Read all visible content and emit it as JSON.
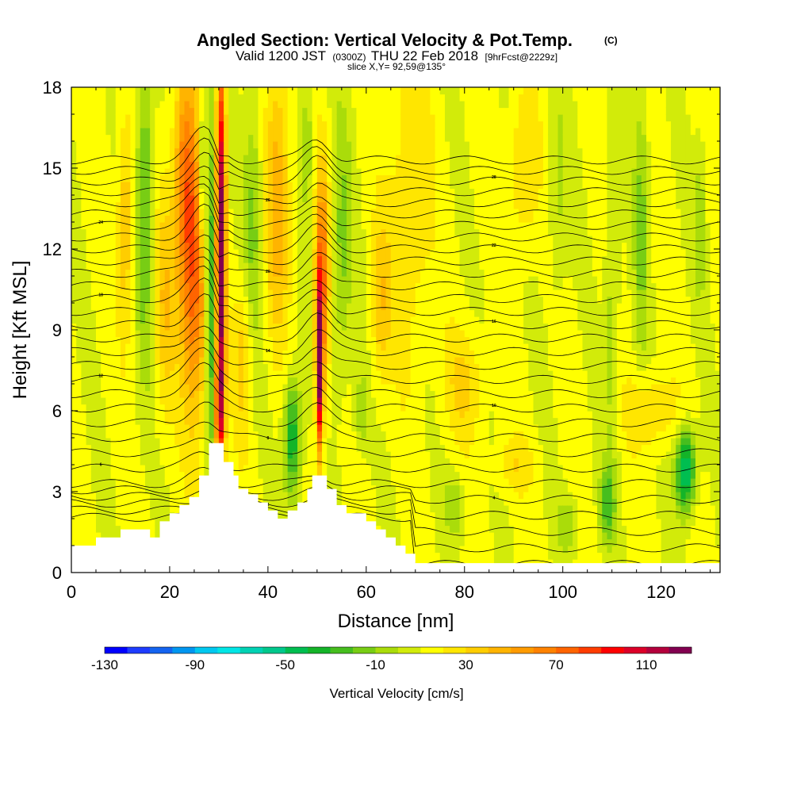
{
  "chart_data": {
    "type": "heatmap",
    "title": "Angled Section: Vertical Velocity & Pot.Temp.",
    "title_mark": "(C)",
    "subtitle": {
      "valid": "Valid 1200 JST",
      "zulu": "(0300Z)",
      "date": "THU 22 Feb 2018",
      "fcst": "[9hrFcst@2229z]"
    },
    "slice_text": "slice X,Y= 92,59@135°",
    "xlabel": "Distance [nm]",
    "ylabel": "Height [Kft MSL]",
    "xlim": [
      0,
      132
    ],
    "ylim": [
      0,
      18
    ],
    "x_ticks": [
      0,
      20,
      40,
      60,
      80,
      100,
      120
    ],
    "y_ticks": [
      0,
      3,
      6,
      9,
      12,
      15,
      18
    ],
    "grid": false,
    "colorbar": {
      "label": "Vertical Velocity [cm/s]",
      "placement": "bottom",
      "tick_labels": [
        "-130",
        "-90",
        "-50",
        "-10",
        "30",
        "70",
        "110"
      ],
      "min": -130,
      "max": 120,
      "step": 10,
      "colors": [
        "#0000ff",
        "#1e3cff",
        "#1464f0",
        "#0096f0",
        "#00c8f0",
        "#00e6e6",
        "#00d2b4",
        "#00c88c",
        "#00be50",
        "#14b428",
        "#46be1e",
        "#78cd14",
        "#aadc0a",
        "#d2eb0a",
        "#ffff00",
        "#ffe600",
        "#ffcd00",
        "#ffb400",
        "#ff9b00",
        "#ff8200",
        "#ff6400",
        "#ff3c00",
        "#ff0000",
        "#dc0028",
        "#b4003c",
        "#820050"
      ]
    },
    "terrain": [
      [
        0,
        1
      ],
      [
        5,
        1
      ],
      [
        5,
        1.3
      ],
      [
        10,
        1.3
      ],
      [
        10,
        1.6
      ],
      [
        16,
        1.6
      ],
      [
        16,
        1.3
      ],
      [
        18,
        1.3
      ],
      [
        18,
        1.9
      ],
      [
        20,
        1.9
      ],
      [
        20,
        2.2
      ],
      [
        22,
        2.2
      ],
      [
        22,
        2.5
      ],
      [
        24,
        2.5
      ],
      [
        24,
        2.8
      ],
      [
        26,
        2.8
      ],
      [
        26,
        3.6
      ],
      [
        28,
        3.6
      ],
      [
        28,
        4.8
      ],
      [
        31,
        4.8
      ],
      [
        31,
        4.1
      ],
      [
        33,
        4.1
      ],
      [
        33,
        3.6
      ],
      [
        34,
        3.6
      ],
      [
        34,
        3.1
      ],
      [
        36,
        3.1
      ],
      [
        36,
        2.9
      ],
      [
        38,
        2.9
      ],
      [
        38,
        2.6
      ],
      [
        40,
        2.6
      ],
      [
        40,
        2.3
      ],
      [
        42,
        2.3
      ],
      [
        42,
        2.0
      ],
      [
        44,
        2.0
      ],
      [
        44,
        2.3
      ],
      [
        46,
        2.3
      ],
      [
        46,
        2.6
      ],
      [
        48,
        2.6
      ],
      [
        48,
        3.1
      ],
      [
        49,
        3.1
      ],
      [
        49,
        3.6
      ],
      [
        52,
        3.6
      ],
      [
        52,
        3.1
      ],
      [
        54,
        3.1
      ],
      [
        54,
        2.5
      ],
      [
        56,
        2.5
      ],
      [
        56,
        2.2
      ],
      [
        60,
        2.2
      ],
      [
        60,
        1.9
      ],
      [
        62,
        1.9
      ],
      [
        62,
        1.6
      ],
      [
        64,
        1.6
      ],
      [
        64,
        1.3
      ],
      [
        66,
        1.3
      ],
      [
        66,
        1.0
      ],
      [
        68,
        1.0
      ],
      [
        68,
        0.7
      ],
      [
        70,
        0.7
      ],
      [
        70,
        0.35
      ],
      [
        132,
        0.35
      ]
    ],
    "w_features": [
      {
        "x": 25,
        "z": 11,
        "sx": 2.8,
        "sz": 5,
        "amp": 65
      },
      {
        "x": 23,
        "z": 15,
        "sx": 2.2,
        "sz": 4,
        "amp": 45
      },
      {
        "x": 30.5,
        "z": 12,
        "sx": 0.9,
        "sz": 8,
        "amp": 115
      },
      {
        "x": 30,
        "z": 6,
        "sx": 0.7,
        "sz": 2,
        "amp": 60
      },
      {
        "x": 28.2,
        "z": 11,
        "sx": 0.8,
        "sz": 6,
        "amp": -65
      },
      {
        "x": 26.5,
        "z": 14.5,
        "sx": 0.8,
        "sz": 3,
        "amp": -40
      },
      {
        "x": 15,
        "z": 14,
        "sx": 1.7,
        "sz": 6,
        "amp": -35
      },
      {
        "x": 11,
        "z": 13,
        "sx": 1.5,
        "sz": 4,
        "amp": 30
      },
      {
        "x": 19,
        "z": 10,
        "sx": 2,
        "sz": 4,
        "amp": 25
      },
      {
        "x": 37,
        "z": 13,
        "sx": 2,
        "sz": 5,
        "amp": -25
      },
      {
        "x": 35,
        "z": 8,
        "sx": 2,
        "sz": 3,
        "amp": 25
      },
      {
        "x": 45,
        "z": 5,
        "sx": 1.7,
        "sz": 2.2,
        "amp": -55
      },
      {
        "x": 50.5,
        "z": 7.5,
        "sx": 0.7,
        "sz": 3,
        "amp": 110
      },
      {
        "x": 51,
        "z": 11,
        "sx": 1.4,
        "sz": 4,
        "amp": 60
      },
      {
        "x": 42,
        "z": 14,
        "sx": 2.5,
        "sz": 5,
        "amp": 35
      },
      {
        "x": 55,
        "z": 12,
        "sx": 2,
        "sz": 5,
        "amp": -25
      },
      {
        "x": 48,
        "z": 16,
        "sx": 1.5,
        "sz": 3,
        "amp": -20
      },
      {
        "x": 59,
        "z": 6,
        "sx": 1.5,
        "sz": 1.5,
        "amp": -20
      },
      {
        "x": 63,
        "z": 10,
        "sx": 2,
        "sz": 3,
        "amp": 25
      },
      {
        "x": 69,
        "z": 14,
        "sx": 4,
        "sz": 6,
        "amp": 20
      },
      {
        "x": 80,
        "z": 7,
        "sx": 4,
        "sz": 2,
        "amp": 20
      },
      {
        "x": 92,
        "z": 15,
        "sx": 3,
        "sz": 3,
        "amp": 20
      },
      {
        "x": 99,
        "z": 14,
        "sx": 2,
        "sz": 4,
        "amp": -15
      },
      {
        "x": 110,
        "z": 10,
        "sx": 1.5,
        "sz": 6,
        "amp": -18
      },
      {
        "x": 109,
        "z": 2.5,
        "sx": 1.6,
        "sz": 1.5,
        "amp": -35
      },
      {
        "x": 116,
        "z": 13,
        "sx": 1.5,
        "sz": 5,
        "amp": -25
      },
      {
        "x": 118,
        "z": 6,
        "sx": 5,
        "sz": 1.5,
        "amp": 20
      },
      {
        "x": 125,
        "z": 3.8,
        "sx": 2,
        "sz": 1.5,
        "amp": -70
      },
      {
        "x": 128,
        "z": 13,
        "sx": 1.2,
        "sz": 3,
        "amp": -18
      },
      {
        "x": 78,
        "z": 2.5,
        "sx": 2,
        "sz": 1.2,
        "amp": -20
      },
      {
        "x": 101,
        "z": 1.8,
        "sx": 2,
        "sz": 1,
        "amp": -20
      },
      {
        "x": 90,
        "z": 4,
        "sx": 4,
        "sz": 1,
        "amp": 15
      }
    ],
    "theta_levels": [
      {
        "level": 0,
        "label": ""
      },
      {
        "level": 1,
        "label": ""
      },
      {
        "level": 2,
        "label": "2"
      },
      {
        "level": 3,
        "label": ""
      },
      {
        "level": 4,
        "label": "4"
      },
      {
        "level": 5,
        "label": ""
      },
      {
        "level": 6,
        "label": "6"
      },
      {
        "level": 7,
        "label": ""
      },
      {
        "level": 8,
        "label": "8"
      },
      {
        "level": 9,
        "label": ""
      },
      {
        "level": 10,
        "label": "10"
      },
      {
        "level": 11,
        "label": ""
      },
      {
        "level": 12,
        "label": "12"
      },
      {
        "level": 13,
        "label": ""
      },
      {
        "level": 14,
        "label": "14"
      },
      {
        "level": 15,
        "label": ""
      },
      {
        "level": 16,
        "label": "16"
      },
      {
        "level": 17,
        "label": ""
      },
      {
        "level": 18,
        "label": "18"
      },
      {
        "level": 19,
        "label": ""
      },
      {
        "level": 20,
        "label": "20"
      },
      {
        "level": 21,
        "label": ""
      },
      {
        "level": 22,
        "label": "22"
      },
      {
        "level": 23,
        "label": ""
      },
      {
        "level": 24,
        "label": "24"
      },
      {
        "level": 25,
        "label": ""
      },
      {
        "level": 26,
        "label": "26"
      },
      {
        "level": 27,
        "label": ""
      },
      {
        "level": 28,
        "label": "28"
      },
      {
        "level": 29,
        "label": ""
      },
      {
        "level": 30,
        "label": ""
      }
    ]
  }
}
